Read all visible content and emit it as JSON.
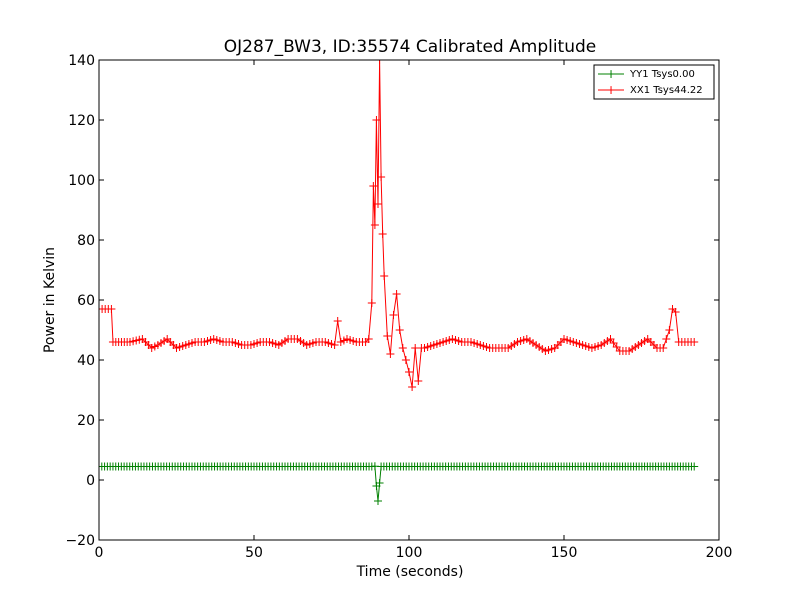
{
  "chart_data": {
    "type": "line",
    "title": "OJ287_BW3, ID:35574 Calibrated Amplitude",
    "xlabel": "Time (seconds)",
    "ylabel": "Power in Kelvin",
    "xlim": [
      0,
      200
    ],
    "ylim": [
      -20,
      140
    ],
    "xticks": [
      "0",
      "50",
      "100",
      "150",
      "200"
    ],
    "yticks": [
      "−20",
      "0",
      "20",
      "40",
      "60",
      "80",
      "100",
      "120",
      "140"
    ],
    "grid": false,
    "legend": "top-right",
    "series": [
      {
        "name": "YY1 Tsys0.00",
        "color": "#008000",
        "marker": "+",
        "x": [
          0,
          9,
          20,
          40,
          60,
          80,
          88,
          89,
          89.5,
          90,
          90.5,
          91,
          100,
          120,
          140,
          160,
          184,
          192
        ],
        "y": [
          4.5,
          4.5,
          4.5,
          4.5,
          4.5,
          4.5,
          4.5,
          4.6,
          -2,
          -7,
          -1,
          4.5,
          4.5,
          4.5,
          4.5,
          4.5,
          4.5,
          4.5
        ]
      },
      {
        "name": "XX1 Tsys44.22",
        "color": "#ff0000",
        "marker": "+",
        "x": [
          0,
          4,
          4.5,
          10,
          14,
          17,
          19,
          22,
          25,
          28,
          31,
          34,
          37,
          40,
          43,
          46,
          49,
          52,
          55,
          58,
          61,
          64,
          67,
          70,
          73,
          76,
          77,
          78,
          80,
          83,
          86,
          87,
          88,
          88.5,
          89,
          89.5,
          90,
          90.5,
          91,
          91.5,
          92,
          93,
          94,
          95,
          96,
          97,
          98,
          99,
          100,
          101,
          102,
          103,
          104,
          105,
          108,
          111,
          114,
          117,
          120,
          123,
          126,
          129,
          132,
          135,
          138,
          141,
          144,
          147,
          150,
          153,
          156,
          159,
          162,
          165,
          168,
          171,
          174,
          177,
          180,
          182,
          184,
          185,
          186,
          187,
          188,
          192
        ],
        "y": [
          57,
          57,
          46,
          46,
          47,
          44,
          45,
          47,
          44,
          45,
          46,
          46,
          47,
          46,
          46,
          45,
          45,
          46,
          46,
          45,
          47,
          47,
          45,
          46,
          46,
          45,
          53,
          46,
          47,
          46,
          46,
          47,
          59,
          98,
          85,
          120,
          92,
          140,
          101,
          82,
          68,
          48,
          42,
          55,
          62,
          50,
          44,
          40,
          36,
          31,
          44,
          33,
          44,
          44,
          45,
          46,
          47,
          46,
          46,
          45,
          44,
          44,
          44,
          46,
          47,
          45,
          43,
          44,
          47,
          46,
          45,
          44,
          45,
          47,
          43,
          43,
          45,
          47,
          44,
          44,
          50,
          57,
          56,
          46,
          46,
          46
        ]
      }
    ]
  }
}
